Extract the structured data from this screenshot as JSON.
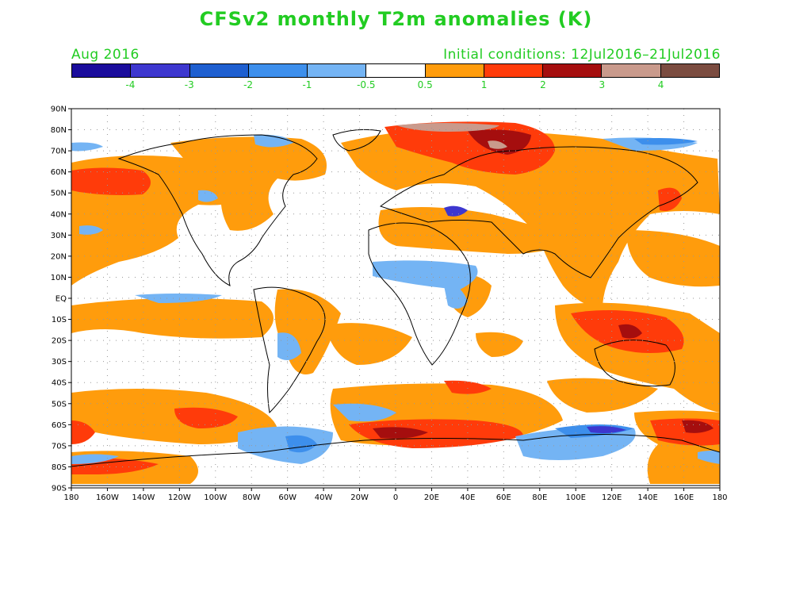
{
  "title": "CFSv2 monthly T2m anomalies (K)",
  "subtitle_left": "Aug 2016",
  "subtitle_right": "Initial conditions: 12Jul2016–21Jul2016",
  "colorbar": {
    "colors": [
      "#1a0c9c",
      "#3d37cf",
      "#1e5fd0",
      "#3d8fec",
      "#74b4f4",
      "#ffffff",
      "#ff9c0c",
      "#ff3b0a",
      "#a50e0e",
      "#c99a8c",
      "#7b4c40"
    ],
    "labels": [
      "-4",
      "-3",
      "-2",
      "-1",
      "-0.5",
      "0.5",
      "1",
      "2",
      "3",
      "4"
    ]
  },
  "map": {
    "lat_labels": [
      "90N",
      "80N",
      "70N",
      "60N",
      "50N",
      "40N",
      "30N",
      "20N",
      "10N",
      "EQ",
      "10S",
      "20S",
      "30S",
      "40S",
      "50S",
      "60S",
      "70S",
      "80S",
      "90S"
    ],
    "lon_labels": [
      "180",
      "160W",
      "140W",
      "120W",
      "100W",
      "80W",
      "60W",
      "40W",
      "20W",
      "0",
      "20E",
      "40E",
      "60E",
      "80E",
      "100E",
      "120E",
      "140E",
      "160E",
      "180"
    ]
  }
}
